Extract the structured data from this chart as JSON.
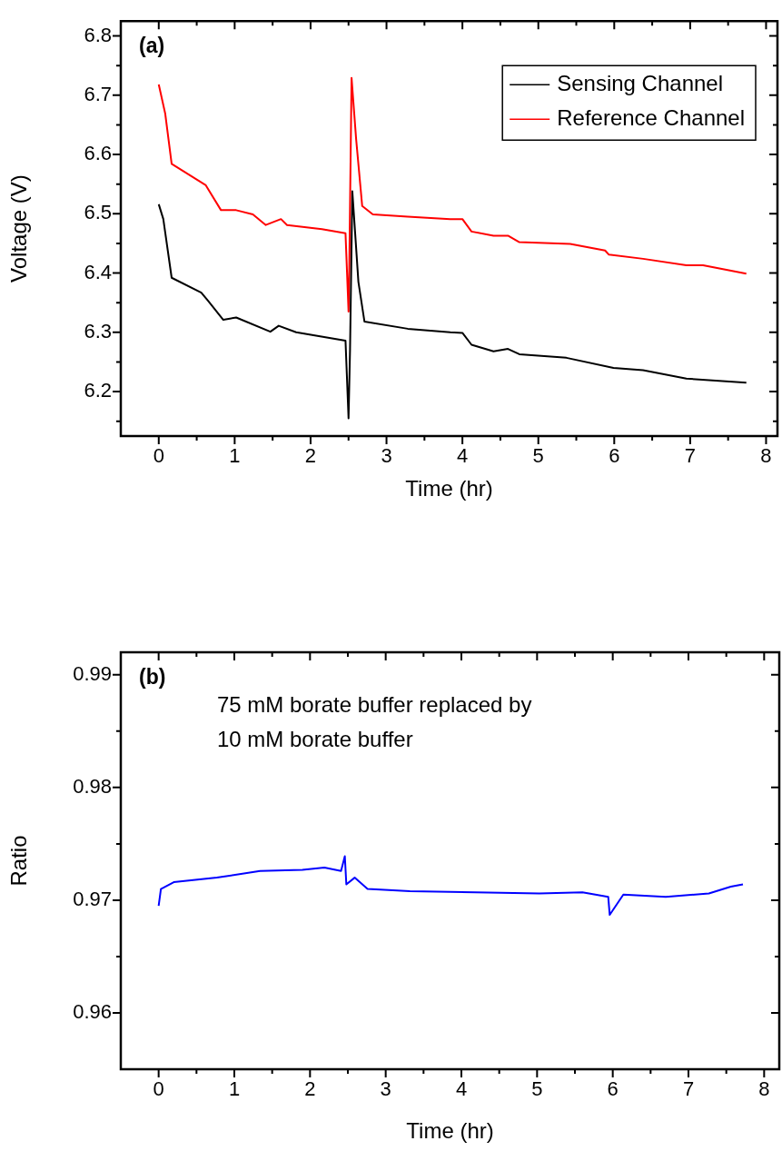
{
  "chart_data": [
    {
      "type": "line",
      "xlabel": "Time (hr)",
      "ylabel": "Voltage (V)",
      "annotations": [
        "(a)"
      ],
      "xlim": [
        -0.5,
        8.15
      ],
      "ylim": [
        6.125,
        6.825
      ],
      "xticks": [
        0,
        {
          "value": 0.5,
          "label": null
        },
        1,
        {
          "value": 1.5,
          "label": null
        },
        2,
        {
          "value": 2.5,
          "label": null
        },
        3,
        {
          "value": 3.5,
          "label": null
        },
        4,
        {
          "value": 4.5,
          "label": null
        },
        5,
        {
          "value": 5.5,
          "label": null
        },
        6,
        {
          "value": 6.5,
          "label": null
        },
        7,
        {
          "value": 7.5,
          "label": null
        },
        8
      ],
      "yticks": [
        {
          "value": 6.15,
          "label": null
        },
        6.2,
        {
          "value": 6.25,
          "label": null
        },
        6.3,
        {
          "value": 6.35,
          "label": null
        },
        6.4,
        {
          "value": 6.45,
          "label": null
        },
        6.5,
        {
          "value": 6.55,
          "label": null
        },
        6.6,
        {
          "value": 6.65,
          "label": null
        },
        6.7,
        {
          "value": 6.75,
          "label": null
        },
        6.8
      ],
      "grid": false,
      "legend": "top right",
      "marker": "none",
      "line_style": "solid",
      "series": [
        {
          "name": "Sensing Channel",
          "color": "#000000",
          "x": [
            0,
            0.06,
            0.17,
            0.56,
            0.65,
            0.85,
            1.02,
            1.47,
            1.58,
            1.81,
            2.46,
            2.5,
            2.52,
            2.55,
            2.63,
            2.71,
            3.28,
            3.84,
            4.0,
            4.12,
            4.41,
            4.6,
            4.75,
            5.37,
            5.99,
            6.38,
            6.95,
            7.74
          ],
          "values": [
            6.516,
            6.491,
            6.392,
            6.367,
            6.353,
            6.321,
            6.325,
            6.301,
            6.311,
            6.3,
            6.286,
            6.155,
            6.272,
            6.538,
            6.385,
            6.318,
            6.306,
            6.3,
            6.299,
            6.279,
            6.268,
            6.272,
            6.263,
            6.257,
            6.24,
            6.236,
            6.222,
            6.215
          ]
        },
        {
          "name": "Reference Channel",
          "color": "#ff0000",
          "x": [
            0,
            0.085,
            0.17,
            0.62,
            0.82,
            1.02,
            1.24,
            1.41,
            1.61,
            1.69,
            2.15,
            2.46,
            2.5,
            2.51,
            2.54,
            2.6,
            2.68,
            2.82,
            3.28,
            3.84,
            4.0,
            4.12,
            4.41,
            4.6,
            4.75,
            5.42,
            5.88,
            5.93,
            6.38,
            6.95,
            7.17,
            7.74
          ],
          "values": [
            6.718,
            6.669,
            6.584,
            6.548,
            6.506,
            6.506,
            6.499,
            6.481,
            6.491,
            6.481,
            6.474,
            6.467,
            6.335,
            6.41,
            6.729,
            6.626,
            6.513,
            6.499,
            6.495,
            6.491,
            6.491,
            6.47,
            6.463,
            6.463,
            6.452,
            6.449,
            6.438,
            6.431,
            6.424,
            6.413,
            6.413,
            6.399
          ]
        }
      ]
    },
    {
      "type": "line",
      "xlabel": "Time (hr)",
      "ylabel": "Ratio",
      "annotations": [
        "(b)",
        "75 mM borate buffer replaced by 10 mM borate buffer"
      ],
      "xlim": [
        -0.5,
        8.2
      ],
      "ylim": [
        0.955,
        0.992
      ],
      "xticks": [
        0,
        {
          "value": 0.5,
          "label": null
        },
        1,
        {
          "value": 1.5,
          "label": null
        },
        2,
        {
          "value": 2.5,
          "label": null
        },
        3,
        {
          "value": 3.5,
          "label": null
        },
        4,
        {
          "value": 4.5,
          "label": null
        },
        5,
        {
          "value": 5.5,
          "label": null
        },
        6,
        {
          "value": 6.5,
          "label": null
        },
        7,
        {
          "value": 7.5,
          "label": null
        },
        8
      ],
      "yticks": [
        0.96,
        {
          "value": 0.965,
          "label": null
        },
        0.97,
        {
          "value": 0.975,
          "label": null
        },
        0.98,
        {
          "value": 0.985,
          "label": null
        },
        0.99
      ],
      "grid": false,
      "marker": "none",
      "line_style": "solid",
      "series": [
        {
          "color": "#0000ff",
          "x": [
            0,
            0.03,
            0.2,
            0.77,
            1.34,
            1.9,
            2.19,
            2.41,
            2.46,
            2.48,
            2.59,
            2.76,
            3.32,
            4.18,
            5.03,
            5.6,
            5.94,
            5.96,
            6.14,
            6.7,
            7.27,
            7.56,
            7.72
          ],
          "values": [
            0.9695,
            0.971,
            0.9716,
            0.972,
            0.9726,
            0.9727,
            0.9729,
            0.9726,
            0.9739,
            0.9714,
            0.972,
            0.971,
            0.9708,
            0.9707,
            0.9706,
            0.9707,
            0.9703,
            0.9687,
            0.9705,
            0.9703,
            0.9706,
            0.9712,
            0.9714
          ]
        }
      ]
    }
  ]
}
